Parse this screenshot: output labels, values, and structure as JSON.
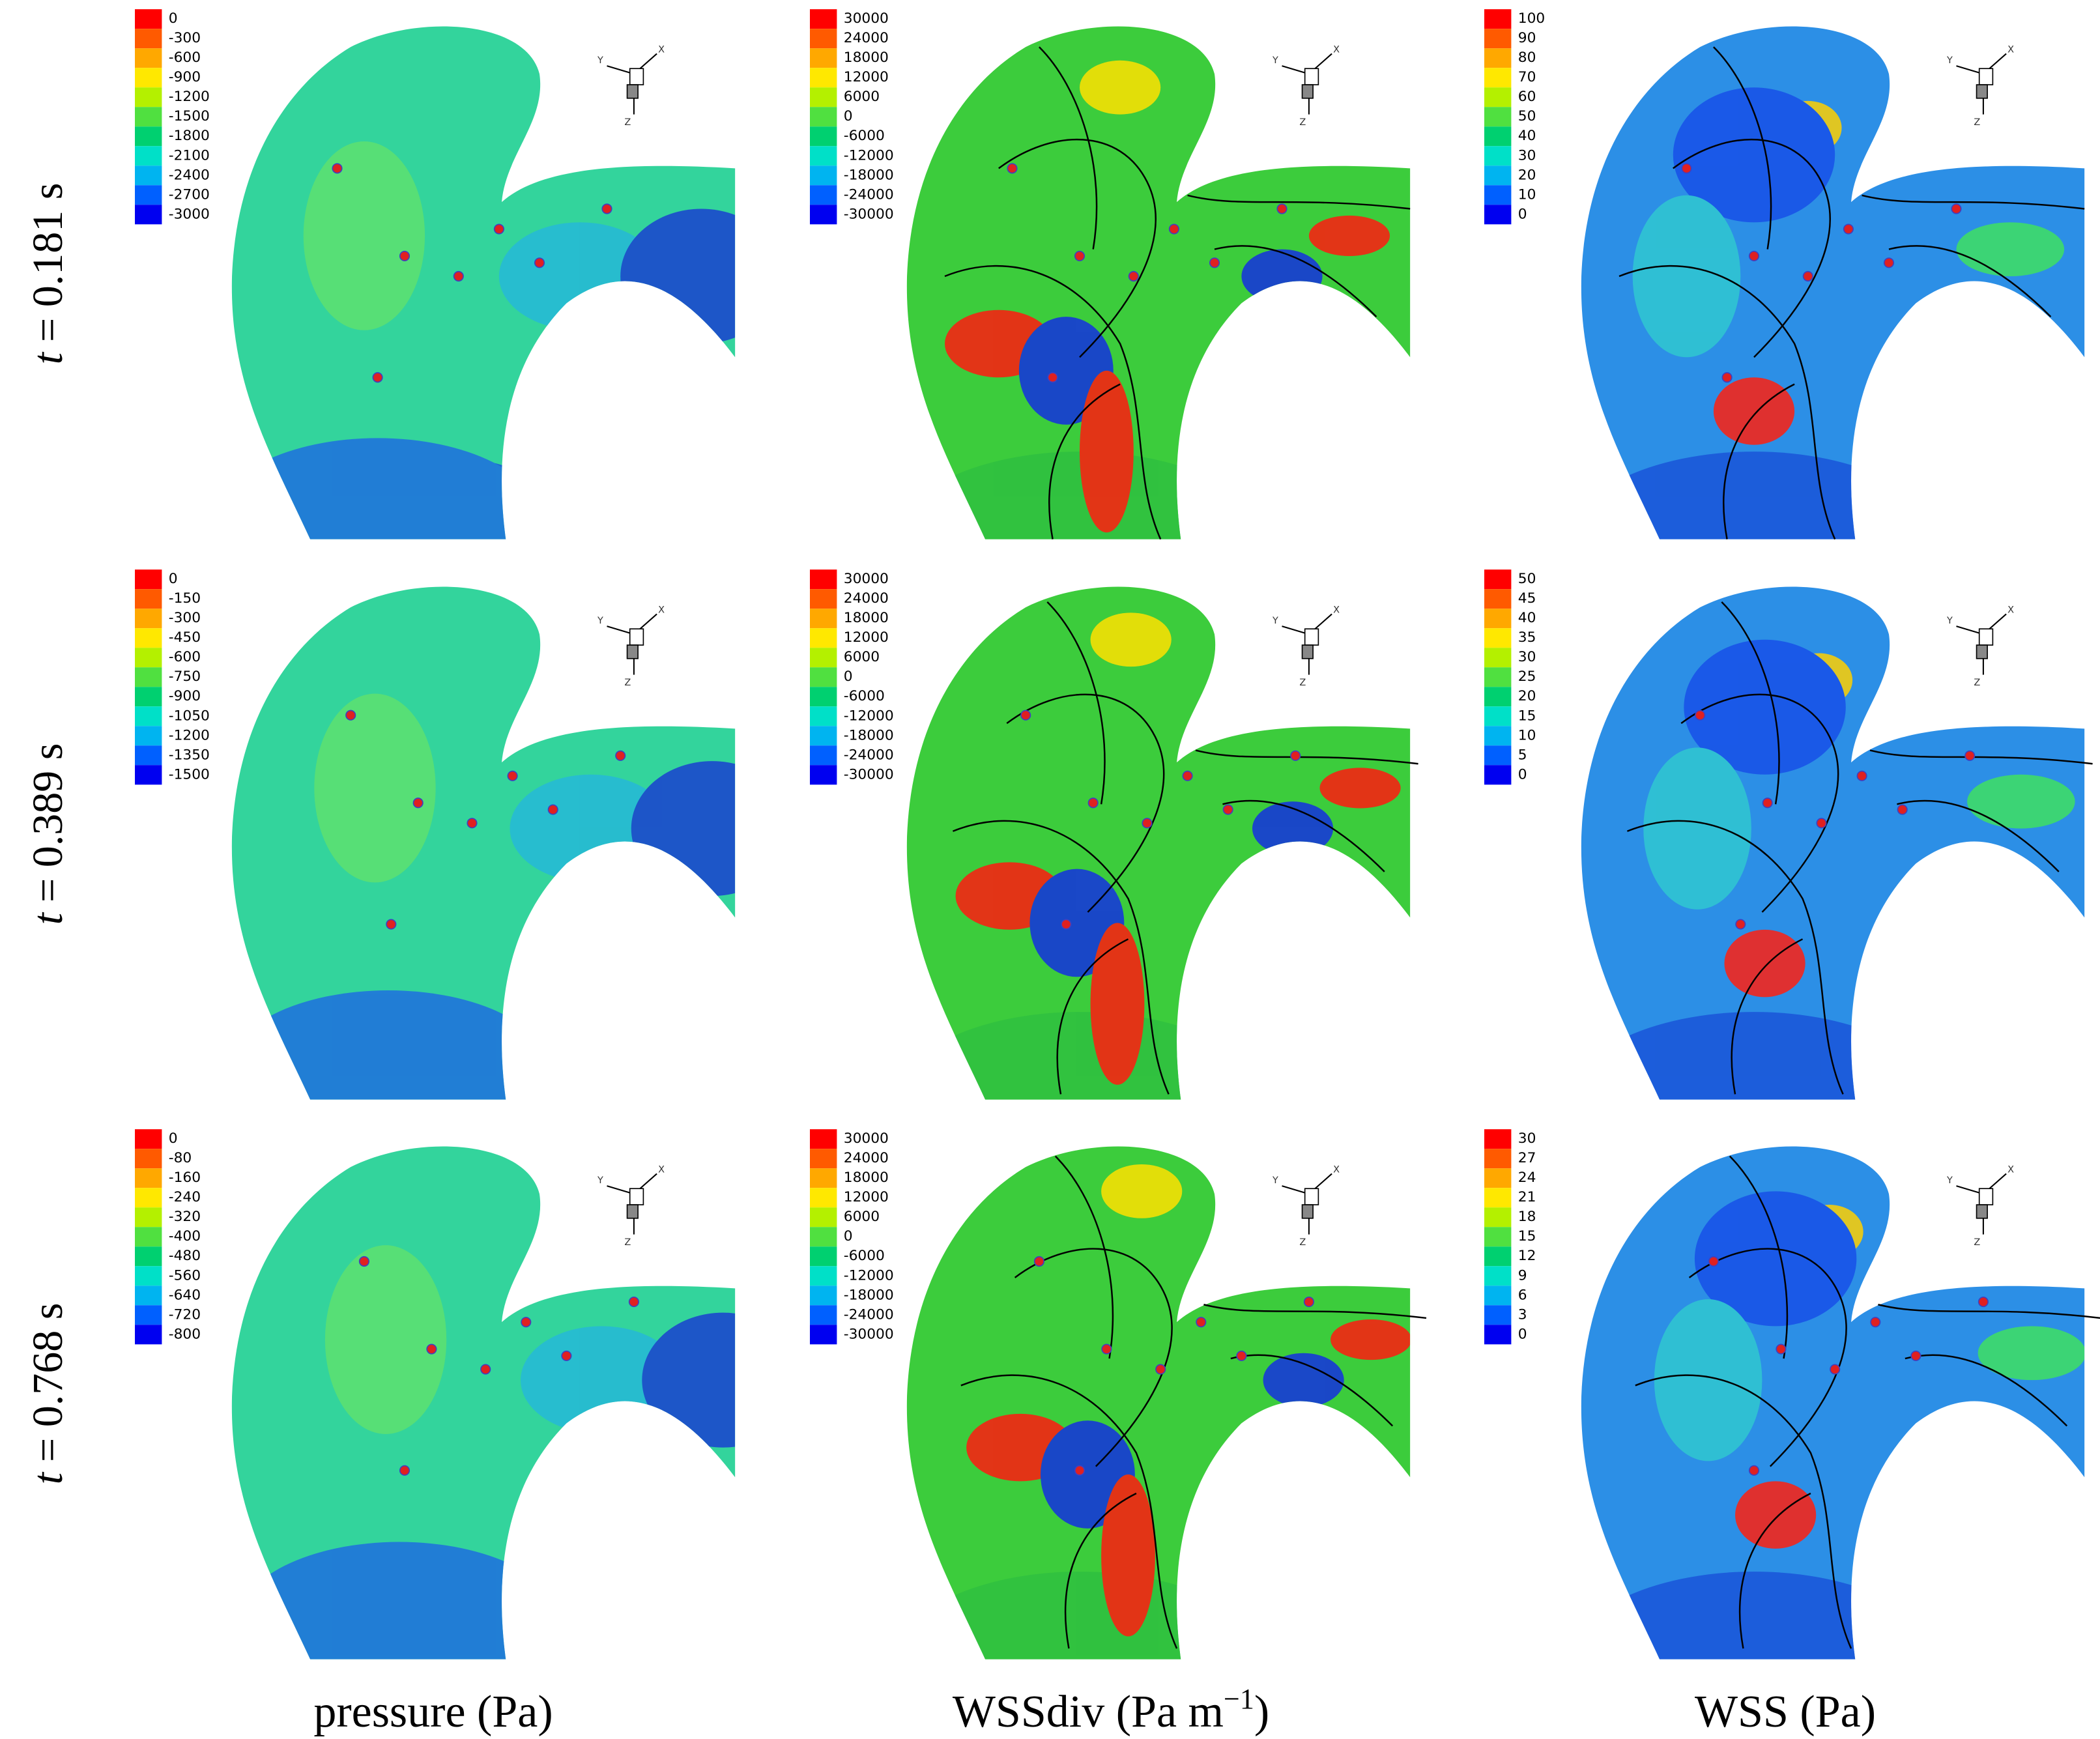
{
  "rows": [
    {
      "var": "t",
      "value": "= 0.181 s"
    },
    {
      "var": "t",
      "value": "= 0.389 s"
    },
    {
      "var": "t",
      "value": "= 0.768 s"
    }
  ],
  "columns": [
    {
      "text": "pressure (Pa)"
    },
    {
      "text": "WSSdiv (Pa m",
      "sup": "−1",
      "tail": ")"
    },
    {
      "text": "WSS (Pa)"
    }
  ],
  "triad": {
    "y": "Y",
    "x": "X",
    "z": "Z"
  },
  "panels": [
    [
      {
        "colorbar": [
          0,
          -300,
          -600,
          -900,
          -1200,
          -1500,
          -1800,
          -2100,
          -2400,
          -2700,
          -3000
        ]
      },
      {
        "colorbar": [
          30000,
          24000,
          18000,
          12000,
          6000,
          0,
          -6000,
          -12000,
          -18000,
          -24000,
          -30000
        ]
      },
      {
        "colorbar": [
          100,
          90,
          80,
          70,
          60,
          50,
          40,
          30,
          20,
          10,
          0
        ]
      }
    ],
    [
      {
        "colorbar": [
          0,
          -150,
          -300,
          -450,
          -600,
          -750,
          -900,
          -1050,
          -1200,
          -1350,
          -1500
        ]
      },
      {
        "colorbar": [
          30000,
          24000,
          18000,
          12000,
          6000,
          0,
          -6000,
          -12000,
          -18000,
          -24000,
          -30000
        ]
      },
      {
        "colorbar": [
          50,
          45,
          40,
          35,
          30,
          25,
          20,
          15,
          10,
          5,
          0
        ]
      }
    ],
    [
      {
        "colorbar": [
          0,
          -80,
          -160,
          -240,
          -320,
          -400,
          -480,
          -560,
          -640,
          -720,
          -800
        ]
      },
      {
        "colorbar": [
          30000,
          24000,
          18000,
          12000,
          6000,
          0,
          -6000,
          -12000,
          -18000,
          -24000,
          -30000
        ]
      },
      {
        "colorbar": [
          30,
          27,
          24,
          21,
          18,
          15,
          12,
          9,
          6,
          3,
          0
        ]
      }
    ]
  ]
}
